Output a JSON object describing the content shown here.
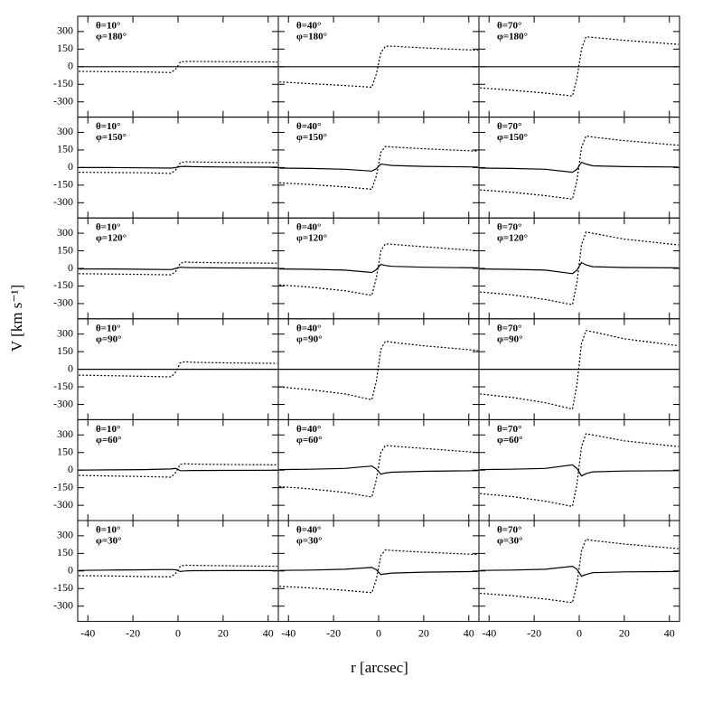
{
  "x_label": "r [arcsec]",
  "y_label": "V [km s⁻¹]",
  "chart_data": [
    {
      "type": "line",
      "annotations": [
        "θ=10°",
        "φ=180°"
      ],
      "x": [
        -44,
        -30,
        -15,
        -3,
        -1,
        1,
        3,
        6,
        20,
        44
      ],
      "xlim": [
        -44.5,
        44.5
      ],
      "ylim": [
        -430,
        430
      ],
      "xticks": [
        -40,
        -20,
        0,
        20,
        40
      ],
      "yticks": [
        300,
        150,
        0,
        -150,
        -300
      ],
      "series": [
        {
          "color": "#000",
          "style": "dotted",
          "values": [
            -40,
            -42,
            -45,
            -50,
            -20,
            40,
            45,
            45,
            42,
            40
          ]
        },
        {
          "color": "#000",
          "style": "solid",
          "values": [
            0,
            0,
            0,
            0,
            0,
            0,
            0,
            0,
            0,
            0
          ]
        }
      ]
    },
    {
      "type": "line",
      "annotations": [
        "θ=40°",
        "φ=180°"
      ],
      "x": [
        -44,
        -30,
        -15,
        -3,
        -1,
        1,
        3,
        6,
        20,
        44
      ],
      "xlim": [
        -44.5,
        44.5
      ],
      "ylim": [
        -430,
        430
      ],
      "xticks": [
        -40,
        -20,
        0,
        20,
        40
      ],
      "yticks": [
        300,
        150,
        0,
        -150,
        -300
      ],
      "series": [
        {
          "color": "#000",
          "style": "dotted",
          "values": [
            -130,
            -145,
            -160,
            -175,
            -60,
            120,
            175,
            175,
            160,
            140
          ]
        },
        {
          "color": "#000",
          "style": "solid",
          "values": [
            0,
            0,
            0,
            0,
            0,
            0,
            0,
            0,
            0,
            0
          ]
        }
      ]
    },
    {
      "type": "line",
      "annotations": [
        "θ=70°",
        "φ=180°"
      ],
      "x": [
        -44,
        -30,
        -15,
        -3,
        -1,
        1,
        3,
        6,
        20,
        44
      ],
      "xlim": [
        -44.5,
        44.5
      ],
      "ylim": [
        -430,
        430
      ],
      "xticks": [
        -40,
        -20,
        0,
        20,
        40
      ],
      "yticks": [
        300,
        150,
        0,
        -150,
        -300
      ],
      "series": [
        {
          "color": "#000",
          "style": "dotted",
          "values": [
            -180,
            -200,
            -225,
            -250,
            -100,
            150,
            255,
            250,
            225,
            190
          ]
        },
        {
          "color": "#000",
          "style": "solid",
          "values": [
            0,
            0,
            0,
            0,
            0,
            0,
            0,
            0,
            0,
            0
          ]
        }
      ]
    },
    {
      "type": "line",
      "annotations": [
        "θ=10°",
        "φ=150°"
      ],
      "x": [
        -44,
        -30,
        -15,
        -3,
        -1,
        1,
        3,
        6,
        20,
        44
      ],
      "xlim": [
        -44.5,
        44.5
      ],
      "ylim": [
        -430,
        430
      ],
      "xticks": [
        -40,
        -20,
        0,
        20,
        40
      ],
      "yticks": [
        300,
        150,
        0,
        -150,
        -300
      ],
      "series": [
        {
          "color": "#000",
          "style": "dotted",
          "values": [
            -40,
            -42,
            -45,
            -50,
            -20,
            40,
            50,
            48,
            45,
            42
          ]
        },
        {
          "color": "#000",
          "style": "solid",
          "values": [
            0,
            0,
            -2,
            -5,
            0,
            8,
            10,
            8,
            5,
            3
          ]
        }
      ]
    },
    {
      "type": "line",
      "annotations": [
        "θ=40°",
        "φ=150°"
      ],
      "x": [
        -44,
        -30,
        -15,
        -3,
        -1,
        1,
        3,
        6,
        20,
        44
      ],
      "xlim": [
        -44.5,
        44.5
      ],
      "ylim": [
        -430,
        430
      ],
      "xticks": [
        -40,
        -20,
        0,
        20,
        40
      ],
      "yticks": [
        300,
        150,
        0,
        -150,
        -300
      ],
      "series": [
        {
          "color": "#000",
          "style": "dotted",
          "values": [
            -130,
            -145,
            -165,
            -185,
            -70,
            130,
            180,
            175,
            160,
            140
          ]
        },
        {
          "color": "#000",
          "style": "solid",
          "values": [
            -5,
            -8,
            -15,
            -30,
            -10,
            30,
            25,
            18,
            10,
            5
          ]
        }
      ]
    },
    {
      "type": "line",
      "annotations": [
        "θ=70°",
        "φ=150°"
      ],
      "x": [
        -44,
        -30,
        -15,
        -3,
        -1,
        1,
        3,
        6,
        20,
        44
      ],
      "xlim": [
        -44.5,
        44.5
      ],
      "ylim": [
        -430,
        430
      ],
      "xticks": [
        -40,
        -20,
        0,
        20,
        40
      ],
      "yticks": [
        300,
        150,
        0,
        -150,
        -300
      ],
      "series": [
        {
          "color": "#000",
          "style": "dotted",
          "values": [
            -190,
            -210,
            -240,
            -270,
            -110,
            170,
            270,
            260,
            230,
            190
          ]
        },
        {
          "color": "#000",
          "style": "solid",
          "values": [
            -5,
            -8,
            -15,
            -40,
            -15,
            45,
            30,
            15,
            8,
            5
          ]
        }
      ]
    },
    {
      "type": "line",
      "annotations": [
        "θ=10°",
        "φ=120°"
      ],
      "x": [
        -44,
        -30,
        -15,
        -3,
        -1,
        1,
        3,
        6,
        20,
        44
      ],
      "xlim": [
        -44.5,
        44.5
      ],
      "ylim": [
        -430,
        430
      ],
      "xticks": [
        -40,
        -20,
        0,
        20,
        40
      ],
      "yticks": [
        300,
        150,
        0,
        -150,
        -300
      ],
      "series": [
        {
          "color": "#000",
          "style": "dotted",
          "values": [
            -45,
            -48,
            -52,
            -55,
            -25,
            45,
            55,
            52,
            48,
            45
          ]
        },
        {
          "color": "#000",
          "style": "solid",
          "values": [
            -5,
            -5,
            -8,
            -10,
            0,
            10,
            8,
            6,
            4,
            2
          ]
        }
      ]
    },
    {
      "type": "line",
      "annotations": [
        "θ=40°",
        "φ=120°"
      ],
      "x": [
        -44,
        -30,
        -15,
        -3,
        -1,
        1,
        3,
        6,
        20,
        44
      ],
      "xlim": [
        -44.5,
        44.5
      ],
      "ylim": [
        -430,
        430
      ],
      "xticks": [
        -40,
        -20,
        0,
        20,
        40
      ],
      "yticks": [
        300,
        150,
        0,
        -150,
        -300
      ],
      "series": [
        {
          "color": "#000",
          "style": "dotted",
          "values": [
            -140,
            -160,
            -190,
            -230,
            -80,
            150,
            210,
            205,
            185,
            150
          ]
        },
        {
          "color": "#000",
          "style": "solid",
          "values": [
            -5,
            -8,
            -15,
            -35,
            -10,
            35,
            25,
            18,
            10,
            5
          ]
        }
      ]
    },
    {
      "type": "line",
      "annotations": [
        "θ=70°",
        "φ=120°"
      ],
      "x": [
        -44,
        -30,
        -15,
        -3,
        -1,
        1,
        3,
        6,
        20,
        44
      ],
      "xlim": [
        -44.5,
        44.5
      ],
      "ylim": [
        -430,
        430
      ],
      "xticks": [
        -40,
        -20,
        0,
        20,
        40
      ],
      "yticks": [
        300,
        150,
        0,
        -150,
        -300
      ],
      "series": [
        {
          "color": "#000",
          "style": "dotted",
          "values": [
            -200,
            -225,
            -265,
            -310,
            -120,
            200,
            310,
            300,
            250,
            200
          ]
        },
        {
          "color": "#000",
          "style": "solid",
          "values": [
            -5,
            -8,
            -15,
            -45,
            -15,
            50,
            30,
            15,
            8,
            5
          ]
        }
      ]
    },
    {
      "type": "line",
      "annotations": [
        "θ=10°",
        "φ=90°"
      ],
      "x": [
        -44,
        -30,
        -15,
        -3,
        -1,
        1,
        3,
        6,
        20,
        44
      ],
      "xlim": [
        -44.5,
        44.5
      ],
      "ylim": [
        -430,
        430
      ],
      "xticks": [
        -40,
        -20,
        0,
        20,
        40
      ],
      "yticks": [
        300,
        150,
        0,
        -150,
        -300
      ],
      "series": [
        {
          "color": "#000",
          "style": "dotted",
          "values": [
            -50,
            -55,
            -60,
            -65,
            -25,
            55,
            65,
            60,
            55,
            50
          ]
        },
        {
          "color": "#000",
          "style": "solid",
          "values": [
            0,
            0,
            0,
            0,
            0,
            0,
            0,
            0,
            0,
            0
          ]
        }
      ]
    },
    {
      "type": "line",
      "annotations": [
        "θ=40°",
        "φ=90°"
      ],
      "x": [
        -44,
        -30,
        -15,
        -3,
        -1,
        1,
        3,
        6,
        20,
        44
      ],
      "xlim": [
        -44.5,
        44.5
      ],
      "ylim": [
        -430,
        430
      ],
      "xticks": [
        -40,
        -20,
        0,
        20,
        40
      ],
      "yticks": [
        300,
        150,
        0,
        -150,
        -300
      ],
      "series": [
        {
          "color": "#000",
          "style": "dotted",
          "values": [
            -150,
            -175,
            -210,
            -260,
            -100,
            170,
            240,
            230,
            200,
            160
          ]
        },
        {
          "color": "#000",
          "style": "solid",
          "values": [
            0,
            0,
            0,
            0,
            0,
            0,
            0,
            0,
            0,
            0
          ]
        }
      ]
    },
    {
      "type": "line",
      "annotations": [
        "θ=70°",
        "φ=90°"
      ],
      "x": [
        -44,
        -30,
        -15,
        -3,
        -1,
        1,
        3,
        6,
        20,
        44
      ],
      "xlim": [
        -44.5,
        44.5
      ],
      "ylim": [
        -430,
        430
      ],
      "xticks": [
        -40,
        -20,
        0,
        20,
        40
      ],
      "yticks": [
        300,
        150,
        0,
        -150,
        -300
      ],
      "series": [
        {
          "color": "#000",
          "style": "dotted",
          "values": [
            -210,
            -240,
            -285,
            -340,
            -130,
            220,
            330,
            320,
            260,
            200
          ]
        },
        {
          "color": "#000",
          "style": "solid",
          "values": [
            0,
            0,
            0,
            0,
            0,
            0,
            0,
            0,
            0,
            0
          ]
        }
      ]
    },
    {
      "type": "line",
      "annotations": [
        "θ=10°",
        "φ=60°"
      ],
      "x": [
        -44,
        -30,
        -15,
        -3,
        -1,
        1,
        3,
        6,
        20,
        44
      ],
      "xlim": [
        -44.5,
        44.5
      ],
      "ylim": [
        -430,
        430
      ],
      "xticks": [
        -40,
        -20,
        0,
        20,
        40
      ],
      "yticks": [
        300,
        150,
        0,
        -150,
        -300
      ],
      "series": [
        {
          "color": "#000",
          "style": "dotted",
          "values": [
            -45,
            -50,
            -55,
            -60,
            -20,
            50,
            55,
            52,
            48,
            45
          ]
        },
        {
          "color": "#000",
          "style": "solid",
          "values": [
            0,
            2,
            5,
            10,
            15,
            -5,
            -5,
            -3,
            -2,
            -1
          ]
        }
      ]
    },
    {
      "type": "line",
      "annotations": [
        "θ=40°",
        "φ=60°"
      ],
      "x": [
        -44,
        -30,
        -15,
        -3,
        -1,
        1,
        3,
        6,
        20,
        44
      ],
      "xlim": [
        -44.5,
        44.5
      ],
      "ylim": [
        -430,
        430
      ],
      "xticks": [
        -40,
        -20,
        0,
        20,
        40
      ],
      "yticks": [
        300,
        150,
        0,
        -150,
        -300
      ],
      "series": [
        {
          "color": "#000",
          "style": "dotted",
          "values": [
            -140,
            -160,
            -190,
            -230,
            -80,
            150,
            210,
            205,
            185,
            150
          ]
        },
        {
          "color": "#000",
          "style": "solid",
          "values": [
            5,
            8,
            15,
            35,
            10,
            -35,
            -25,
            -18,
            -10,
            -5
          ]
        }
      ]
    },
    {
      "type": "line",
      "annotations": [
        "θ=70°",
        "φ=60°"
      ],
      "x": [
        -44,
        -30,
        -15,
        -3,
        -1,
        1,
        3,
        6,
        20,
        44
      ],
      "xlim": [
        -44.5,
        44.5
      ],
      "ylim": [
        -430,
        430
      ],
      "xticks": [
        -40,
        -20,
        0,
        20,
        40
      ],
      "yticks": [
        300,
        150,
        0,
        -150,
        -300
      ],
      "series": [
        {
          "color": "#000",
          "style": "dotted",
          "values": [
            -200,
            -225,
            -265,
            -310,
            -120,
            200,
            310,
            300,
            250,
            200
          ]
        },
        {
          "color": "#000",
          "style": "solid",
          "values": [
            5,
            8,
            15,
            45,
            15,
            -50,
            -30,
            -15,
            -8,
            -5
          ]
        }
      ]
    },
    {
      "type": "line",
      "annotations": [
        "θ=10°",
        "φ=30°"
      ],
      "x": [
        -44,
        -30,
        -15,
        -3,
        -1,
        1,
        3,
        6,
        20,
        44
      ],
      "xlim": [
        -44.5,
        44.5
      ],
      "ylim": [
        -430,
        430
      ],
      "xticks": [
        -40,
        -20,
        0,
        20,
        40
      ],
      "yticks": [
        300,
        150,
        0,
        -150,
        -300
      ],
      "series": [
        {
          "color": "#000",
          "style": "dotted",
          "values": [
            -40,
            -42,
            -48,
            -50,
            -20,
            40,
            50,
            48,
            45,
            40
          ]
        },
        {
          "color": "#000",
          "style": "solid",
          "values": [
            5,
            8,
            10,
            12,
            10,
            -5,
            0,
            2,
            3,
            3
          ]
        }
      ]
    },
    {
      "type": "line",
      "annotations": [
        "θ=40°",
        "φ=30°"
      ],
      "x": [
        -44,
        -30,
        -15,
        -3,
        -1,
        1,
        3,
        6,
        20,
        44
      ],
      "xlim": [
        -44.5,
        44.5
      ],
      "ylim": [
        -430,
        430
      ],
      "xticks": [
        -40,
        -20,
        0,
        20,
        40
      ],
      "yticks": [
        300,
        150,
        0,
        -150,
        -300
      ],
      "series": [
        {
          "color": "#000",
          "style": "dotted",
          "values": [
            -130,
            -145,
            -165,
            -185,
            -70,
            130,
            180,
            175,
            160,
            140
          ]
        },
        {
          "color": "#000",
          "style": "solid",
          "values": [
            5,
            8,
            15,
            30,
            10,
            -30,
            -25,
            -18,
            -10,
            -5
          ]
        }
      ]
    },
    {
      "type": "line",
      "annotations": [
        "θ=70°",
        "φ=30°"
      ],
      "x": [
        -44,
        -30,
        -15,
        -3,
        -1,
        1,
        3,
        6,
        20,
        44
      ],
      "xlim": [
        -44.5,
        44.5
      ],
      "ylim": [
        -430,
        430
      ],
      "xticks": [
        -40,
        -20,
        0,
        20,
        40
      ],
      "yticks": [
        300,
        150,
        0,
        -150,
        -300
      ],
      "series": [
        {
          "color": "#000",
          "style": "dotted",
          "values": [
            -190,
            -210,
            -240,
            -270,
            -110,
            170,
            270,
            260,
            230,
            190
          ]
        },
        {
          "color": "#000",
          "style": "solid",
          "values": [
            5,
            8,
            15,
            40,
            15,
            -45,
            -30,
            -15,
            -8,
            -5
          ]
        }
      ]
    }
  ]
}
